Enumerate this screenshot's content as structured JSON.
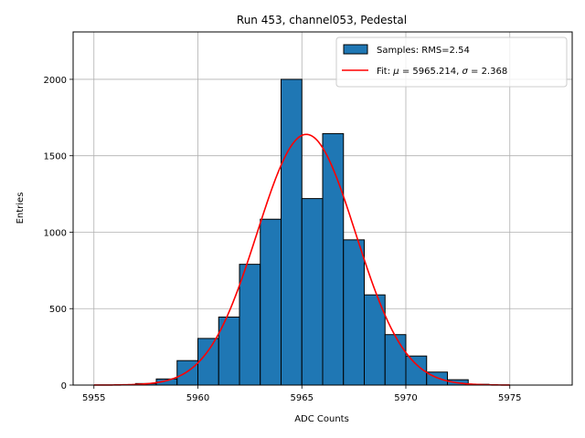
{
  "chart_data": {
    "type": "bar",
    "title": "Run 453, channel053, Pedestal",
    "xlabel": "ADC Counts",
    "ylabel": "Entries",
    "xlim": [
      5954,
      5978
    ],
    "ylim": [
      0,
      2310
    ],
    "grid": true,
    "legend_placement": "top-right",
    "x_ticks": [
      5955,
      5960,
      5965,
      5970,
      5975
    ],
    "y_ticks": [
      0,
      500,
      1000,
      1500,
      2000
    ],
    "bin_width": 1,
    "bins": [
      {
        "left": 5957,
        "value": 10
      },
      {
        "left": 5958,
        "value": 40
      },
      {
        "left": 5959,
        "value": 160
      },
      {
        "left": 5960,
        "value": 305
      },
      {
        "left": 5961,
        "value": 445
      },
      {
        "left": 5962,
        "value": 790
      },
      {
        "left": 5963,
        "value": 1085
      },
      {
        "left": 5964,
        "value": 2000
      },
      {
        "left": 5965,
        "value": 1220
      },
      {
        "left": 5966,
        "value": 1645
      },
      {
        "left": 5967,
        "value": 950
      },
      {
        "left": 5968,
        "value": 590
      },
      {
        "left": 5969,
        "value": 330
      },
      {
        "left": 5970,
        "value": 190
      },
      {
        "left": 5971,
        "value": 85
      },
      {
        "left": 5972,
        "value": 35
      },
      {
        "left": 5973,
        "value": 5
      }
    ],
    "series": [
      {
        "name": "Samples: RMS=2.54",
        "kind": "histogram",
        "color": "#1f77b4",
        "edge_color": "#000000"
      },
      {
        "name": "Fit: μ = 5965.214, σ = 2.368",
        "kind": "gaussian_fit",
        "color": "#ff0000",
        "mu": 5965.214,
        "sigma": 2.368,
        "amplitude": 1640,
        "x_range": [
          5955,
          5975
        ]
      }
    ],
    "legend": {
      "samples_prefix": "Samples: RMS=2.54",
      "fit_prefix": "Fit: ",
      "fit_mu_symbol": "μ",
      "fit_mu_value": " = 5965.214, ",
      "fit_sigma_symbol": "σ",
      "fit_sigma_value": " = 2.368"
    },
    "colors": {
      "bar": "#1f77b4",
      "fit": "#ff0000",
      "grid": "#b0b0b0"
    }
  }
}
